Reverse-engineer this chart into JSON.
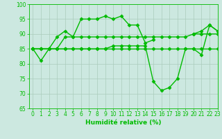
{
  "xlabel": "Humidité relative (%)",
  "background_color": "#cce8e0",
  "grid_color": "#aaccbb",
  "line_color": "#00bb00",
  "ylim": [
    65,
    100
  ],
  "xlim": [
    -0.5,
    23
  ],
  "yticks": [
    65,
    70,
    75,
    80,
    85,
    90,
    95,
    100
  ],
  "xticks": [
    0,
    1,
    2,
    3,
    4,
    5,
    6,
    7,
    8,
    9,
    10,
    11,
    12,
    13,
    14,
    15,
    16,
    17,
    18,
    19,
    20,
    21,
    22,
    23
  ],
  "line1_x": [
    0,
    1,
    2,
    3,
    4,
    5,
    6,
    7,
    8,
    9,
    10,
    11,
    12,
    13,
    14,
    15,
    16,
    17,
    18,
    19,
    20,
    21,
    22,
    23
  ],
  "line1_y": [
    85,
    81,
    85,
    89,
    91,
    89,
    95,
    95,
    95,
    96,
    95,
    96,
    93,
    93,
    87,
    88,
    null,
    null,
    null,
    null,
    90,
    91,
    93,
    91
  ],
  "line2_x": [
    0,
    1,
    2,
    3,
    4,
    5,
    6,
    7,
    8,
    9,
    10,
    11,
    12,
    13,
    14,
    15,
    16,
    17,
    18,
    19,
    20,
    21,
    22,
    23
  ],
  "line2_y": [
    85,
    85,
    85,
    85,
    85,
    85,
    85,
    85,
    85,
    85,
    85,
    85,
    85,
    85,
    85,
    85,
    85,
    85,
    85,
    85,
    85,
    85,
    85,
    85
  ],
  "line3_x": [
    0,
    1,
    2,
    3,
    4,
    5,
    6,
    7,
    8,
    9,
    10,
    11,
    12,
    13,
    14,
    15,
    16,
    17,
    18,
    19,
    20,
    21,
    22,
    23
  ],
  "line3_y": [
    85,
    85,
    85,
    85,
    89,
    89,
    89,
    89,
    89,
    89,
    89,
    89,
    89,
    89,
    89,
    89,
    89,
    89,
    89,
    89,
    90,
    90,
    90,
    90
  ],
  "line4_x": [
    0,
    1,
    2,
    3,
    4,
    5,
    6,
    7,
    8,
    9,
    10,
    11,
    12,
    13,
    14,
    15,
    16,
    17,
    18,
    19,
    20,
    21,
    22,
    23
  ],
  "line4_y": [
    85,
    85,
    85,
    85,
    85,
    85,
    85,
    85,
    85,
    85,
    86,
    86,
    86,
    86,
    86,
    74,
    71,
    72,
    75,
    85,
    85,
    83,
    93,
    91
  ],
  "marker": "D",
  "markersize": 2.5,
  "linewidth": 1.0
}
